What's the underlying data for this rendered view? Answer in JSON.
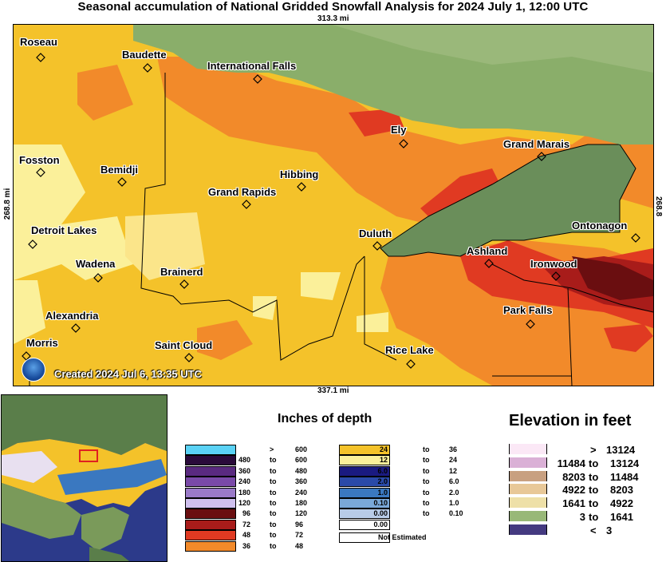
{
  "title": "Seasonal accumulation of National Gridded Snowfall Analysis for 2024 July 1, 12:00 UTC",
  "scale": {
    "top": "313.3 mi",
    "bottom": "337.1 mi",
    "left": "268.8 mi",
    "right": "268.8 mi"
  },
  "created": "Created 2024 Jul 6, 13:35 UTC",
  "cities": [
    {
      "name": "Roseau"
    },
    {
      "name": "Baudette"
    },
    {
      "name": "International Falls"
    },
    {
      "name": "Ely"
    },
    {
      "name": "Grand Marais"
    },
    {
      "name": "Fosston"
    },
    {
      "name": "Bemidji"
    },
    {
      "name": "Hibbing"
    },
    {
      "name": "Grand Rapids"
    },
    {
      "name": "Ontonagon"
    },
    {
      "name": "Detroit Lakes"
    },
    {
      "name": "Duluth"
    },
    {
      "name": "Ashland"
    },
    {
      "name": "Ironwood"
    },
    {
      "name": "Wadena"
    },
    {
      "name": "Brainerd"
    },
    {
      "name": "Park Falls"
    },
    {
      "name": "Alexandria"
    },
    {
      "name": "Morris"
    },
    {
      "name": "Saint Cloud"
    },
    {
      "name": "Rice Lake"
    }
  ],
  "depth_legend": {
    "title": "Inches of depth",
    "left": [
      {
        "color": "#5ad2f5",
        "lo": "",
        "sep": ">",
        "hi": "600"
      },
      {
        "color": "#2a0a3a",
        "lo": "480",
        "sep": "to",
        "hi": "600"
      },
      {
        "color": "#5a2a80",
        "lo": "360",
        "sep": "to",
        "hi": "480"
      },
      {
        "color": "#7a4aa8",
        "lo": "240",
        "sep": "to",
        "hi": "360"
      },
      {
        "color": "#9a7ac8",
        "lo": "180",
        "sep": "to",
        "hi": "240"
      },
      {
        "color": "#cfc0ee",
        "lo": "120",
        "sep": "to",
        "hi": "180"
      },
      {
        "color": "#6a0e10",
        "lo": "96",
        "sep": "to",
        "hi": "120"
      },
      {
        "color": "#a81c1a",
        "lo": "72",
        "sep": "to",
        "hi": "96"
      },
      {
        "color": "#e03a22",
        "lo": "48",
        "sep": "to",
        "hi": "72"
      },
      {
        "color": "#f28a2a",
        "lo": "36",
        "sep": "to",
        "hi": "48"
      }
    ],
    "right": [
      {
        "color": "#f4c22a",
        "lo": "24",
        "sep": "to",
        "hi": "36"
      },
      {
        "color": "#fbf09a",
        "lo": "12",
        "sep": "to",
        "hi": "24"
      },
      {
        "color": "#1a1a80",
        "lo": "6.0",
        "sep": "to",
        "hi": "12"
      },
      {
        "color": "#2a4aa8",
        "lo": "2.0",
        "sep": "to",
        "hi": "6.0"
      },
      {
        "color": "#3a78c0",
        "lo": "1.0",
        "sep": "to",
        "hi": "2.0"
      },
      {
        "color": "#7aa8d8",
        "lo": "0.10",
        "sep": "to",
        "hi": "1.0"
      },
      {
        "color": "#b8cce8",
        "lo": "0.00",
        "sep": "to",
        "hi": "0.10"
      },
      {
        "color": "#ffffff",
        "lo": "0.00",
        "sep": "",
        "hi": ""
      }
    ],
    "not_estimated": "Not Estimated"
  },
  "elevation_legend": {
    "title": "Elevation in feet",
    "rows": [
      {
        "color": "#fbe8f6",
        "lo": "",
        "sep": ">",
        "hi": "13124"
      },
      {
        "color": "#dab0d6",
        "lo": "11484",
        "sep": "to",
        "hi": "13124"
      },
      {
        "color": "#c8a080",
        "lo": "8203",
        "sep": "to",
        "hi": "11484"
      },
      {
        "color": "#e8c898",
        "lo": "4922",
        "sep": "to",
        "hi": "8203"
      },
      {
        "color": "#eee0a8",
        "lo": "1641",
        "sep": "to",
        "hi": "4922"
      },
      {
        "color": "#98b878",
        "lo": "3",
        "sep": "to",
        "hi": "1641"
      },
      {
        "color": "#443a80",
        "lo": "",
        "sep": "<",
        "hi": "3"
      }
    ]
  }
}
